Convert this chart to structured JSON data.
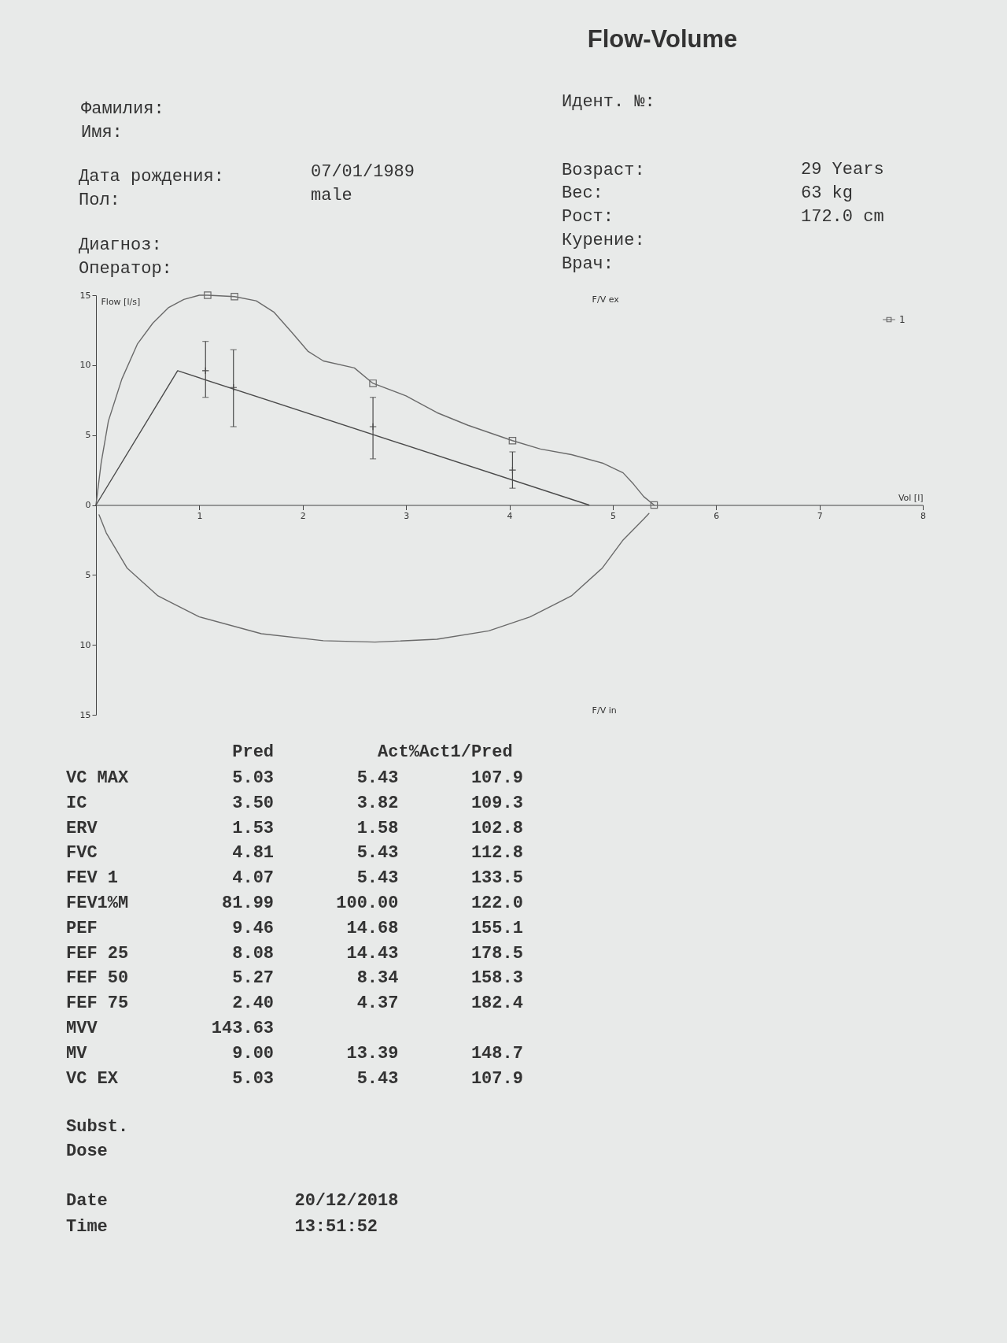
{
  "chart_data": [
    {
      "type": "other",
      "title": "Flow-Volume",
      "annotations": [
        "Фамилия:",
        "Имя:",
        "Идент. №:",
        "Дата рождения:",
        "07/01/1989",
        "Пол:",
        "male",
        "Возраст:",
        "29 Years",
        "Вес:",
        "63 kg",
        "Рост:",
        "172.0 cm",
        "Курение:",
        "Диагноз:",
        "Оператор:",
        "Врач:"
      ]
    },
    {
      "type": "line",
      "xlabel": "Vol [l]",
      "ylabel": "Flow [l/s]",
      "xlim": [
        0,
        8
      ],
      "xticks": [
        {
          "value": 0,
          "label": null
        },
        1,
        2,
        3,
        4,
        5,
        6,
        7,
        8
      ],
      "ylim": [
        -15,
        15
      ],
      "yticks": [
        {
          "value": -15,
          "label": "15"
        },
        {
          "value": -10,
          "label": "10"
        },
        {
          "value": -5,
          "label": "5"
        },
        0,
        5,
        10,
        15
      ],
      "legend": "top right",
      "annotations": [
        "F/V ex",
        "F/V in"
      ],
      "series": [
        {
          "name": "1",
          "type": "line",
          "color": "#6a6a6a",
          "x": [
            0,
            0.05,
            0.12,
            0.25,
            0.4,
            0.55,
            0.7,
            0.85,
            1.0,
            1.08,
            1.34,
            1.55,
            1.72,
            1.9,
            2.05,
            2.2,
            2.5,
            2.68,
            3.0,
            3.3,
            3.6,
            4.03,
            4.3,
            4.6,
            4.9,
            5.1,
            5.2,
            5.3,
            5.4
          ],
          "values": [
            0,
            3,
            6,
            9,
            11.5,
            13,
            14.1,
            14.7,
            15,
            15,
            14.9,
            14.6,
            13.8,
            12.3,
            11,
            10.3,
            9.8,
            8.7,
            7.8,
            6.6,
            5.7,
            4.6,
            4,
            3.6,
            3,
            2.3,
            1.5,
            0.6,
            0
          ]
        },
        {
          "type": "line",
          "color": "#6a6a6a",
          "x": [
            5.35,
            5.3,
            5.1,
            4.9,
            4.6,
            4.2,
            3.8,
            3.3,
            2.7,
            2.2,
            1.6,
            1.0,
            0.6,
            0.3,
            0.1,
            0.03
          ],
          "values": [
            -0.6,
            -1,
            -2.5,
            -4.5,
            -6.5,
            -8,
            -9,
            -9.6,
            -9.8,
            -9.7,
            -9.2,
            -8,
            -6.5,
            -4.5,
            -2,
            -0.7
          ]
        },
        {
          "type": "scatter",
          "marker": "square",
          "color": "#6a6a6a",
          "x": [
            1.08,
            1.34,
            2.68,
            4.03,
            5.4
          ],
          "values": [
            15,
            14.9,
            8.7,
            4.6,
            0
          ]
        },
        {
          "type": "line",
          "color": "#4a4a4a",
          "x": [
            0,
            0.79,
            4.77
          ],
          "values": [
            0,
            9.6,
            0
          ]
        },
        {
          "type": "scatter",
          "marker": "cross",
          "color": "#4a4a4a",
          "x": [
            1.06,
            1.33,
            2.68,
            4.03
          ],
          "values": [
            9.6,
            8.4,
            5.6,
            2.5
          ],
          "errors": [
            [
              7.7,
              11.7
            ],
            [
              5.6,
              11.1
            ],
            [
              3.3,
              7.7
            ],
            [
              1.2,
              3.8
            ]
          ]
        }
      ]
    },
    {
      "type": "other",
      "annotations": [
        "                Pred          Act%Act1/Pred",
        "VC MAX          5.03        5.43       107.9",
        "IC              3.50        3.82       109.3",
        "ERV             1.53        1.58       102.8",
        "FVC             4.81        5.43       112.8",
        "FEV 1           4.07        5.43       133.5",
        "FEV1%M         81.99      100.00       122.0",
        "PEF             9.46       14.68       155.1",
        "FEF 25          8.08       14.43       178.5",
        "FEF 50          5.27        8.34       158.3",
        "FEF 75          2.40        4.37       182.4",
        "MVV           143.63",
        "MV              9.00       13.39       148.7",
        "VC EX           5.03        5.43       107.9",
        "Subst.",
        "Dose",
        "Date                  20/12/2018",
        "Time                  13:51:52"
      ]
    }
  ]
}
